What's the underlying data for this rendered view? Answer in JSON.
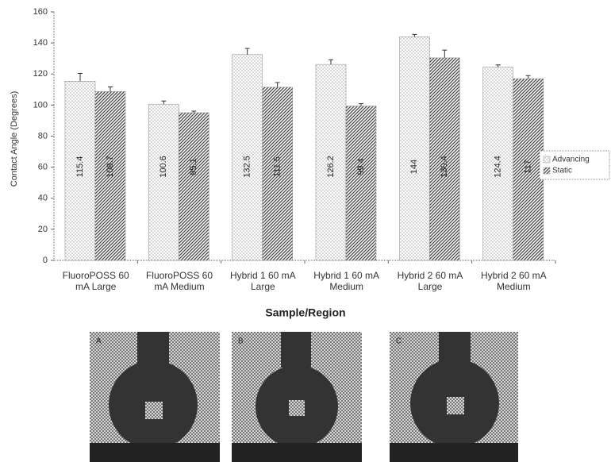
{
  "chart_data": {
    "type": "bar",
    "x_label": "Sample/Region",
    "y_label": "Contact Angle (Degrees)",
    "categories": [
      "FluoroPOSS 60 mA Large",
      "FluoroPOSS 60 mA Medium",
      "Hybrid 1 60 mA Large",
      "Hybrid 1 60 mA Medium",
      "Hybrid 2 60 mA Large",
      "Hybrid 2 60 mA Medium"
    ],
    "series": [
      {
        "name": "Advancing",
        "color": "#bdbdbd",
        "values": [
          115.4,
          100.6,
          132.5,
          126.2,
          144.0,
          124.4
        ],
        "errors": [
          5,
          2,
          4,
          3,
          1.5,
          1.5
        ]
      },
      {
        "name": "Static",
        "color": "#444444",
        "values": [
          108.7,
          95.1,
          111.5,
          99.4,
          130.4,
          117.0
        ],
        "errors": [
          3,
          1,
          3,
          1.5,
          5,
          2
        ]
      }
    ],
    "ylim": [
      0,
      160
    ],
    "yticks": [
      0,
      20,
      40,
      60,
      80,
      100,
      120,
      140,
      160
    ],
    "legend": "right"
  },
  "images": [
    {
      "label": "A"
    },
    {
      "label": "B"
    },
    {
      "label": "C"
    }
  ]
}
